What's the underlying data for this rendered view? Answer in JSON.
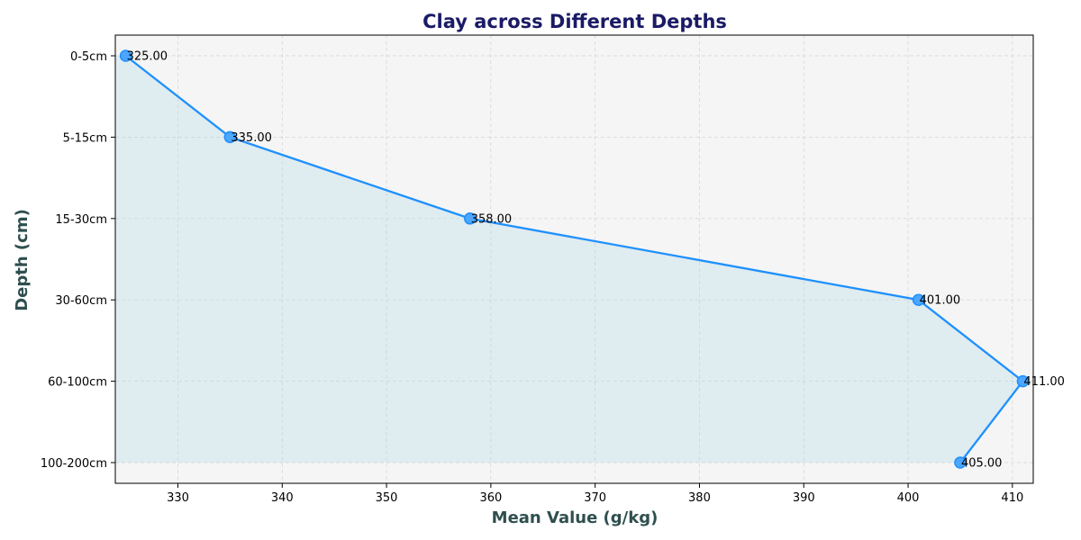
{
  "chart_data": {
    "type": "line",
    "orientation": "horizontal",
    "title": "Clay across Different Depths",
    "xlabel": "Mean Value (g/kg)",
    "ylabel": "Depth (cm)",
    "categories": [
      "0-5cm",
      "5-15cm",
      "15-30cm",
      "30-60cm",
      "60-100cm",
      "100-200cm"
    ],
    "values": [
      325,
      335,
      358,
      401,
      411,
      405
    ],
    "data_labels": [
      "325.00",
      "335.00",
      "358.00",
      "401.00",
      "411.00",
      "405.00"
    ],
    "xlim": [
      324,
      412
    ],
    "x_ticks": [
      330,
      340,
      350,
      360,
      370,
      380,
      390,
      400,
      410
    ],
    "grid": true,
    "fill_area": true,
    "colors": {
      "line": "#1e90ff",
      "marker": "#4da6ff",
      "fill": "#add8e6",
      "plot_background": "#f5f5f5",
      "grid": "#d3d3d3",
      "title": "#1a1a66",
      "axis_label": "#2f4f4f"
    }
  }
}
